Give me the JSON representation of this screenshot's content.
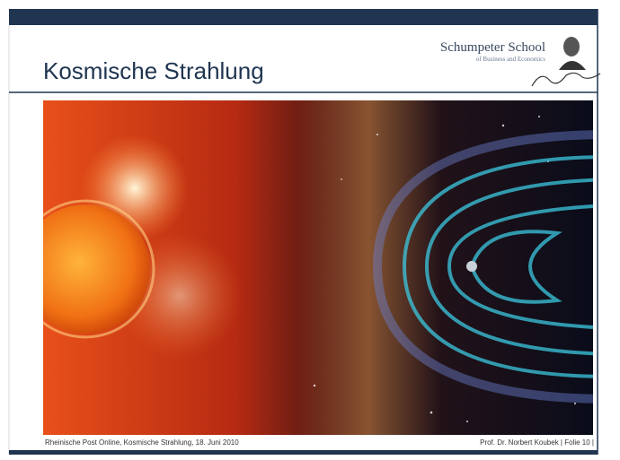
{
  "header": {
    "title": "Kosmische Strahlung"
  },
  "logo": {
    "name": "Schumpeter School",
    "subtitle": "of Business and Economics"
  },
  "footer": {
    "source": "Rheinische Post Online, Kosmische Strahlung, 18. Juni 2010",
    "author": "Prof. Dr. Norbert Koubek | Folie 10 |"
  }
}
